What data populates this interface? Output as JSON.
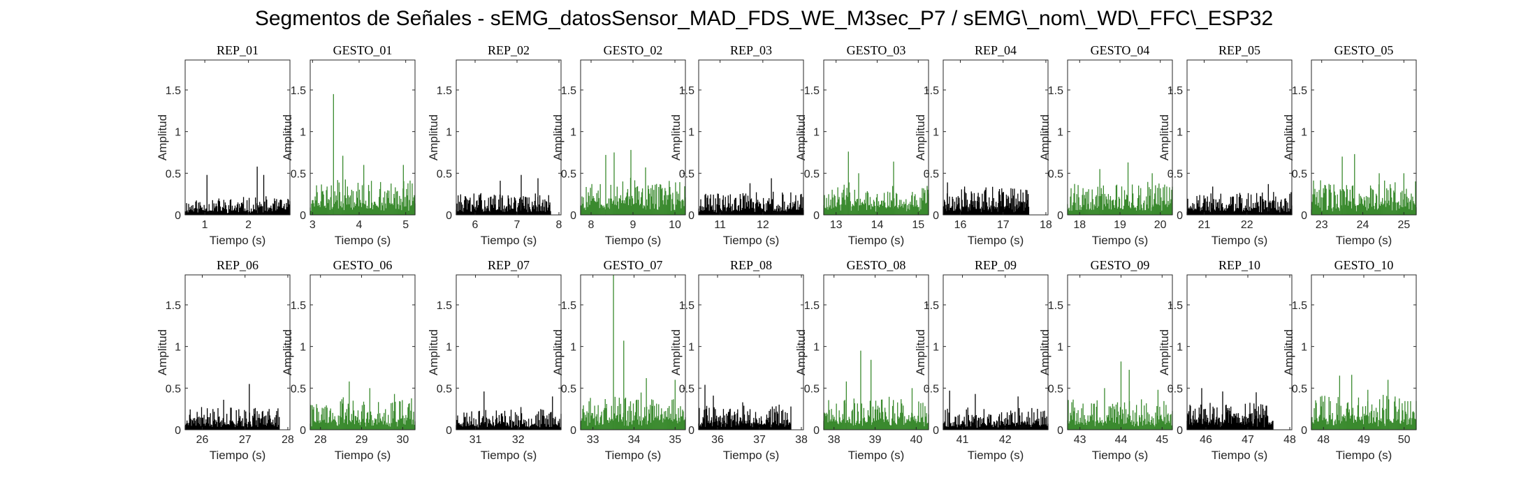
{
  "figure": {
    "title": "Segmentos de Señales - sEMG_datosSensor_MAD_FDS_WE_M3sec_P7 / sEMG\\_nom\\_WD\\_FFC\\_ESP32",
    "colors": {
      "rep": "#000000",
      "gesto": "#3a8a2e",
      "axis": "#262626"
    }
  },
  "chart_data": [
    {
      "type": "bar",
      "title": "REP_01",
      "xlabel": "Tiempo (s)",
      "ylabel": "Amplitud",
      "xlim": [
        0.55,
        2.95
      ],
      "ylim": [
        0,
        1.86
      ],
      "xticks": [
        1,
        2
      ],
      "yticks": [
        0,
        0.5,
        1,
        1.5
      ],
      "color": "#000000",
      "seed": 11,
      "x_range": [
        0.55,
        2.95
      ],
      "base": 0.13,
      "peaks": [
        [
          1.05,
          0.48
        ],
        [
          2.2,
          0.58
        ],
        [
          2.35,
          0.48
        ]
      ]
    },
    {
      "type": "bar",
      "title": "GESTO_01",
      "xlabel": "Tiempo (s)",
      "ylabel": "Amplitud",
      "xlim": [
        2.95,
        5.2
      ],
      "ylim": [
        0,
        1.86
      ],
      "xticks": [
        3,
        4,
        5
      ],
      "yticks": [
        0,
        0.5,
        1,
        1.5
      ],
      "color": "#3a8a2e",
      "seed": 12,
      "x_range": [
        2.95,
        5.2
      ],
      "base": 0.25,
      "peaks": [
        [
          3.45,
          1.45
        ],
        [
          3.65,
          0.71
        ],
        [
          4.1,
          0.6
        ],
        [
          4.95,
          0.6
        ]
      ]
    },
    {
      "type": "bar",
      "title": "REP_02",
      "xlabel": "Tiempo (s)",
      "ylabel": "Amplitud",
      "xlim": [
        5.55,
        8.05
      ],
      "ylim": [
        0,
        1.86
      ],
      "xticks": [
        6,
        7,
        8
      ],
      "yticks": [
        0,
        0.5,
        1,
        1.5
      ],
      "color": "#000000",
      "seed": 13,
      "x_range": [
        5.55,
        7.8
      ],
      "base": 0.16,
      "peaks": [
        [
          6.6,
          0.41
        ],
        [
          7.1,
          0.48
        ],
        [
          7.5,
          0.44
        ]
      ]
    },
    {
      "type": "bar",
      "title": "GESTO_02",
      "xlabel": "Tiempo (s)",
      "ylabel": "Amplitud",
      "xlim": [
        7.75,
        10.25
      ],
      "ylim": [
        0,
        1.86
      ],
      "xticks": [
        8,
        9,
        10
      ],
      "yticks": [
        0,
        0.5,
        1,
        1.5
      ],
      "color": "#3a8a2e",
      "seed": 14,
      "x_range": [
        7.75,
        10.25
      ],
      "base": 0.27,
      "peaks": [
        [
          8.35,
          0.72
        ],
        [
          8.55,
          0.75
        ],
        [
          8.95,
          0.78
        ],
        [
          9.3,
          0.57
        ]
      ]
    },
    {
      "type": "bar",
      "title": "REP_03",
      "xlabel": "Tiempo (s)",
      "ylabel": "Amplitud",
      "xlim": [
        10.5,
        12.95
      ],
      "ylim": [
        0,
        1.86
      ],
      "xticks": [
        11,
        12
      ],
      "yticks": [
        0,
        0.5,
        1,
        1.5
      ],
      "color": "#000000",
      "seed": 15,
      "x_range": [
        10.5,
        12.95
      ],
      "base": 0.17,
      "peaks": [
        [
          12.2,
          0.44
        ],
        [
          11.7,
          0.38
        ]
      ]
    },
    {
      "type": "bar",
      "title": "GESTO_03",
      "xlabel": "Tiempo (s)",
      "ylabel": "Amplitud",
      "xlim": [
        12.7,
        15.25
      ],
      "ylim": [
        0,
        1.86
      ],
      "xticks": [
        13,
        14,
        15
      ],
      "yticks": [
        0,
        0.5,
        1,
        1.5
      ],
      "color": "#3a8a2e",
      "seed": 16,
      "x_range": [
        12.7,
        15.25
      ],
      "base": 0.24,
      "peaks": [
        [
          13.3,
          0.76
        ],
        [
          14.4,
          0.64
        ],
        [
          13.55,
          0.5
        ]
      ]
    },
    {
      "type": "bar",
      "title": "REP_04",
      "xlabel": "Tiempo (s)",
      "ylabel": "Amplitud",
      "xlim": [
        15.6,
        18.05
      ],
      "ylim": [
        0,
        1.86
      ],
      "xticks": [
        16,
        17,
        18
      ],
      "yticks": [
        0,
        0.5,
        1,
        1.5
      ],
      "color": "#000000",
      "seed": 17,
      "x_range": [
        15.6,
        17.6
      ],
      "base": 0.2,
      "peaks": [
        [
          15.7,
          0.39
        ],
        [
          16.1,
          0.34
        ],
        [
          16.6,
          0.33
        ]
      ]
    },
    {
      "type": "bar",
      "title": "GESTO_04",
      "xlabel": "Tiempo (s)",
      "ylabel": "Amplitud",
      "xlim": [
        17.7,
        20.3
      ],
      "ylim": [
        0,
        1.86
      ],
      "xticks": [
        18,
        19,
        20
      ],
      "yticks": [
        0,
        0.5,
        1,
        1.5
      ],
      "color": "#3a8a2e",
      "seed": 18,
      "x_range": [
        17.7,
        20.3
      ],
      "base": 0.24,
      "peaks": [
        [
          18.5,
          0.55
        ],
        [
          19.2,
          0.63
        ],
        [
          19.8,
          0.5
        ]
      ]
    },
    {
      "type": "bar",
      "title": "REP_05",
      "xlabel": "Tiempo (s)",
      "ylabel": "Amplitud",
      "xlim": [
        20.6,
        23.05
      ],
      "ylim": [
        0,
        1.86
      ],
      "xticks": [
        21,
        22
      ],
      "yticks": [
        0,
        0.5,
        1,
        1.5
      ],
      "color": "#000000",
      "seed": 19,
      "x_range": [
        20.6,
        23.05
      ],
      "base": 0.17,
      "peaks": [
        [
          22.5,
          0.37
        ],
        [
          21.2,
          0.34
        ]
      ]
    },
    {
      "type": "bar",
      "title": "GESTO_05",
      "xlabel": "Tiempo (s)",
      "ylabel": "Amplitud",
      "xlim": [
        22.75,
        25.3
      ],
      "ylim": [
        0,
        1.86
      ],
      "xticks": [
        23,
        24,
        25
      ],
      "yticks": [
        0,
        0.5,
        1,
        1.5
      ],
      "color": "#3a8a2e",
      "seed": 20,
      "x_range": [
        22.75,
        25.3
      ],
      "base": 0.25,
      "peaks": [
        [
          23.5,
          0.7
        ],
        [
          23.8,
          0.73
        ],
        [
          24.4,
          0.5
        ],
        [
          25.0,
          0.5
        ]
      ]
    },
    {
      "type": "bar",
      "title": "REP_06",
      "xlabel": "Tiempo (s)",
      "ylabel": "Amplitud",
      "xlim": [
        25.6,
        28.05
      ],
      "ylim": [
        0,
        1.86
      ],
      "xticks": [
        26,
        27,
        28
      ],
      "yticks": [
        0,
        0.5,
        1,
        1.5
      ],
      "color": "#000000",
      "seed": 21,
      "x_range": [
        25.6,
        27.8
      ],
      "base": 0.17,
      "peaks": [
        [
          27.1,
          0.55
        ],
        [
          26.5,
          0.36
        ]
      ]
    },
    {
      "type": "bar",
      "title": "GESTO_06",
      "xlabel": "Tiempo (s)",
      "ylabel": "Amplitud",
      "xlim": [
        27.75,
        30.3
      ],
      "ylim": [
        0,
        1.86
      ],
      "xticks": [
        28,
        29,
        30
      ],
      "yticks": [
        0,
        0.5,
        1,
        1.5
      ],
      "color": "#3a8a2e",
      "seed": 22,
      "x_range": [
        27.75,
        30.3
      ],
      "base": 0.23,
      "peaks": [
        [
          28.7,
          0.58
        ],
        [
          29.2,
          0.5
        ],
        [
          29.8,
          0.43
        ]
      ]
    },
    {
      "type": "bar",
      "title": "REP_07",
      "xlabel": "Tiempo (s)",
      "ylabel": "Amplitud",
      "xlim": [
        30.55,
        33.0
      ],
      "ylim": [
        0,
        1.86
      ],
      "xticks": [
        31,
        32
      ],
      "yticks": [
        0,
        0.5,
        1,
        1.5
      ],
      "color": "#000000",
      "seed": 23,
      "x_range": [
        30.55,
        33.0
      ],
      "base": 0.16,
      "peaks": [
        [
          31.2,
          0.46
        ],
        [
          32.8,
          0.4
        ]
      ]
    },
    {
      "type": "bar",
      "title": "GESTO_07",
      "xlabel": "Tiempo (s)",
      "ylabel": "Amplitud",
      "xlim": [
        32.7,
        35.25
      ],
      "ylim": [
        0,
        1.86
      ],
      "xticks": [
        33,
        34,
        35
      ],
      "yticks": [
        0,
        0.5,
        1,
        1.5
      ],
      "color": "#3a8a2e",
      "seed": 24,
      "x_range": [
        32.7,
        35.25
      ],
      "base": 0.26,
      "peaks": [
        [
          33.5,
          1.86
        ],
        [
          33.75,
          1.07
        ],
        [
          34.3,
          0.62
        ],
        [
          35.0,
          0.6
        ]
      ]
    },
    {
      "type": "bar",
      "title": "REP_08",
      "xlabel": "Tiempo (s)",
      "ylabel": "Amplitud",
      "xlim": [
        35.55,
        38.05
      ],
      "ylim": [
        0,
        1.86
      ],
      "xticks": [
        36,
        37,
        38
      ],
      "yticks": [
        0,
        0.5,
        1,
        1.5
      ],
      "color": "#000000",
      "seed": 25,
      "x_range": [
        35.55,
        37.75
      ],
      "base": 0.18,
      "peaks": [
        [
          35.7,
          0.54
        ],
        [
          35.9,
          0.41
        ],
        [
          36.6,
          0.33
        ]
      ]
    },
    {
      "type": "bar",
      "title": "GESTO_08",
      "xlabel": "Tiempo (s)",
      "ylabel": "Amplitud",
      "xlim": [
        37.75,
        40.3
      ],
      "ylim": [
        0,
        1.86
      ],
      "xticks": [
        38,
        39,
        40
      ],
      "yticks": [
        0,
        0.5,
        1,
        1.5
      ],
      "color": "#3a8a2e",
      "seed": 26,
      "x_range": [
        37.75,
        40.3
      ],
      "base": 0.24,
      "peaks": [
        [
          38.65,
          0.95
        ],
        [
          38.9,
          0.84
        ],
        [
          38.3,
          0.58
        ],
        [
          39.9,
          0.5
        ]
      ]
    },
    {
      "type": "bar",
      "title": "REP_09",
      "xlabel": "Tiempo (s)",
      "ylabel": "Amplitud",
      "xlim": [
        40.55,
        43.0
      ],
      "ylim": [
        0,
        1.86
      ],
      "xticks": [
        41,
        42
      ],
      "yticks": [
        0,
        0.5,
        1,
        1.5
      ],
      "color": "#000000",
      "seed": 27,
      "x_range": [
        40.55,
        43.0
      ],
      "base": 0.16,
      "peaks": [
        [
          40.7,
          0.47
        ],
        [
          41.3,
          0.43
        ],
        [
          42.3,
          0.4
        ]
      ]
    },
    {
      "type": "bar",
      "title": "GESTO_09",
      "xlabel": "Tiempo (s)",
      "ylabel": "Amplitud",
      "xlim": [
        42.7,
        45.25
      ],
      "ylim": [
        0,
        1.86
      ],
      "xticks": [
        43,
        44,
        45
      ],
      "yticks": [
        0,
        0.5,
        1,
        1.5
      ],
      "color": "#3a8a2e",
      "seed": 28,
      "x_range": [
        42.7,
        45.25
      ],
      "base": 0.22,
      "peaks": [
        [
          44.0,
          0.82
        ],
        [
          44.2,
          0.72
        ],
        [
          43.6,
          0.5
        ],
        [
          44.9,
          0.48
        ]
      ]
    },
    {
      "type": "bar",
      "title": "REP_10",
      "xlabel": "Tiempo (s)",
      "ylabel": "Amplitud",
      "xlim": [
        45.55,
        48.05
      ],
      "ylim": [
        0,
        1.86
      ],
      "xticks": [
        46,
        47,
        48
      ],
      "yticks": [
        0,
        0.5,
        1,
        1.5
      ],
      "color": "#000000",
      "seed": 29,
      "x_range": [
        45.55,
        47.6
      ],
      "base": 0.2,
      "peaks": [
        [
          45.9,
          0.5
        ],
        [
          46.4,
          0.46
        ],
        [
          47.2,
          0.45
        ]
      ]
    },
    {
      "type": "bar",
      "title": "GESTO_10",
      "xlabel": "Tiempo (s)",
      "ylabel": "Amplitud",
      "xlim": [
        47.7,
        50.3
      ],
      "ylim": [
        0,
        1.86
      ],
      "xticks": [
        48,
        49,
        50
      ],
      "yticks": [
        0,
        0.5,
        1,
        1.5
      ],
      "color": "#3a8a2e",
      "seed": 30,
      "x_range": [
        47.7,
        50.3
      ],
      "base": 0.26,
      "peaks": [
        [
          48.4,
          0.65
        ],
        [
          48.7,
          0.66
        ],
        [
          49.6,
          0.6
        ],
        [
          49.1,
          0.48
        ]
      ]
    }
  ]
}
